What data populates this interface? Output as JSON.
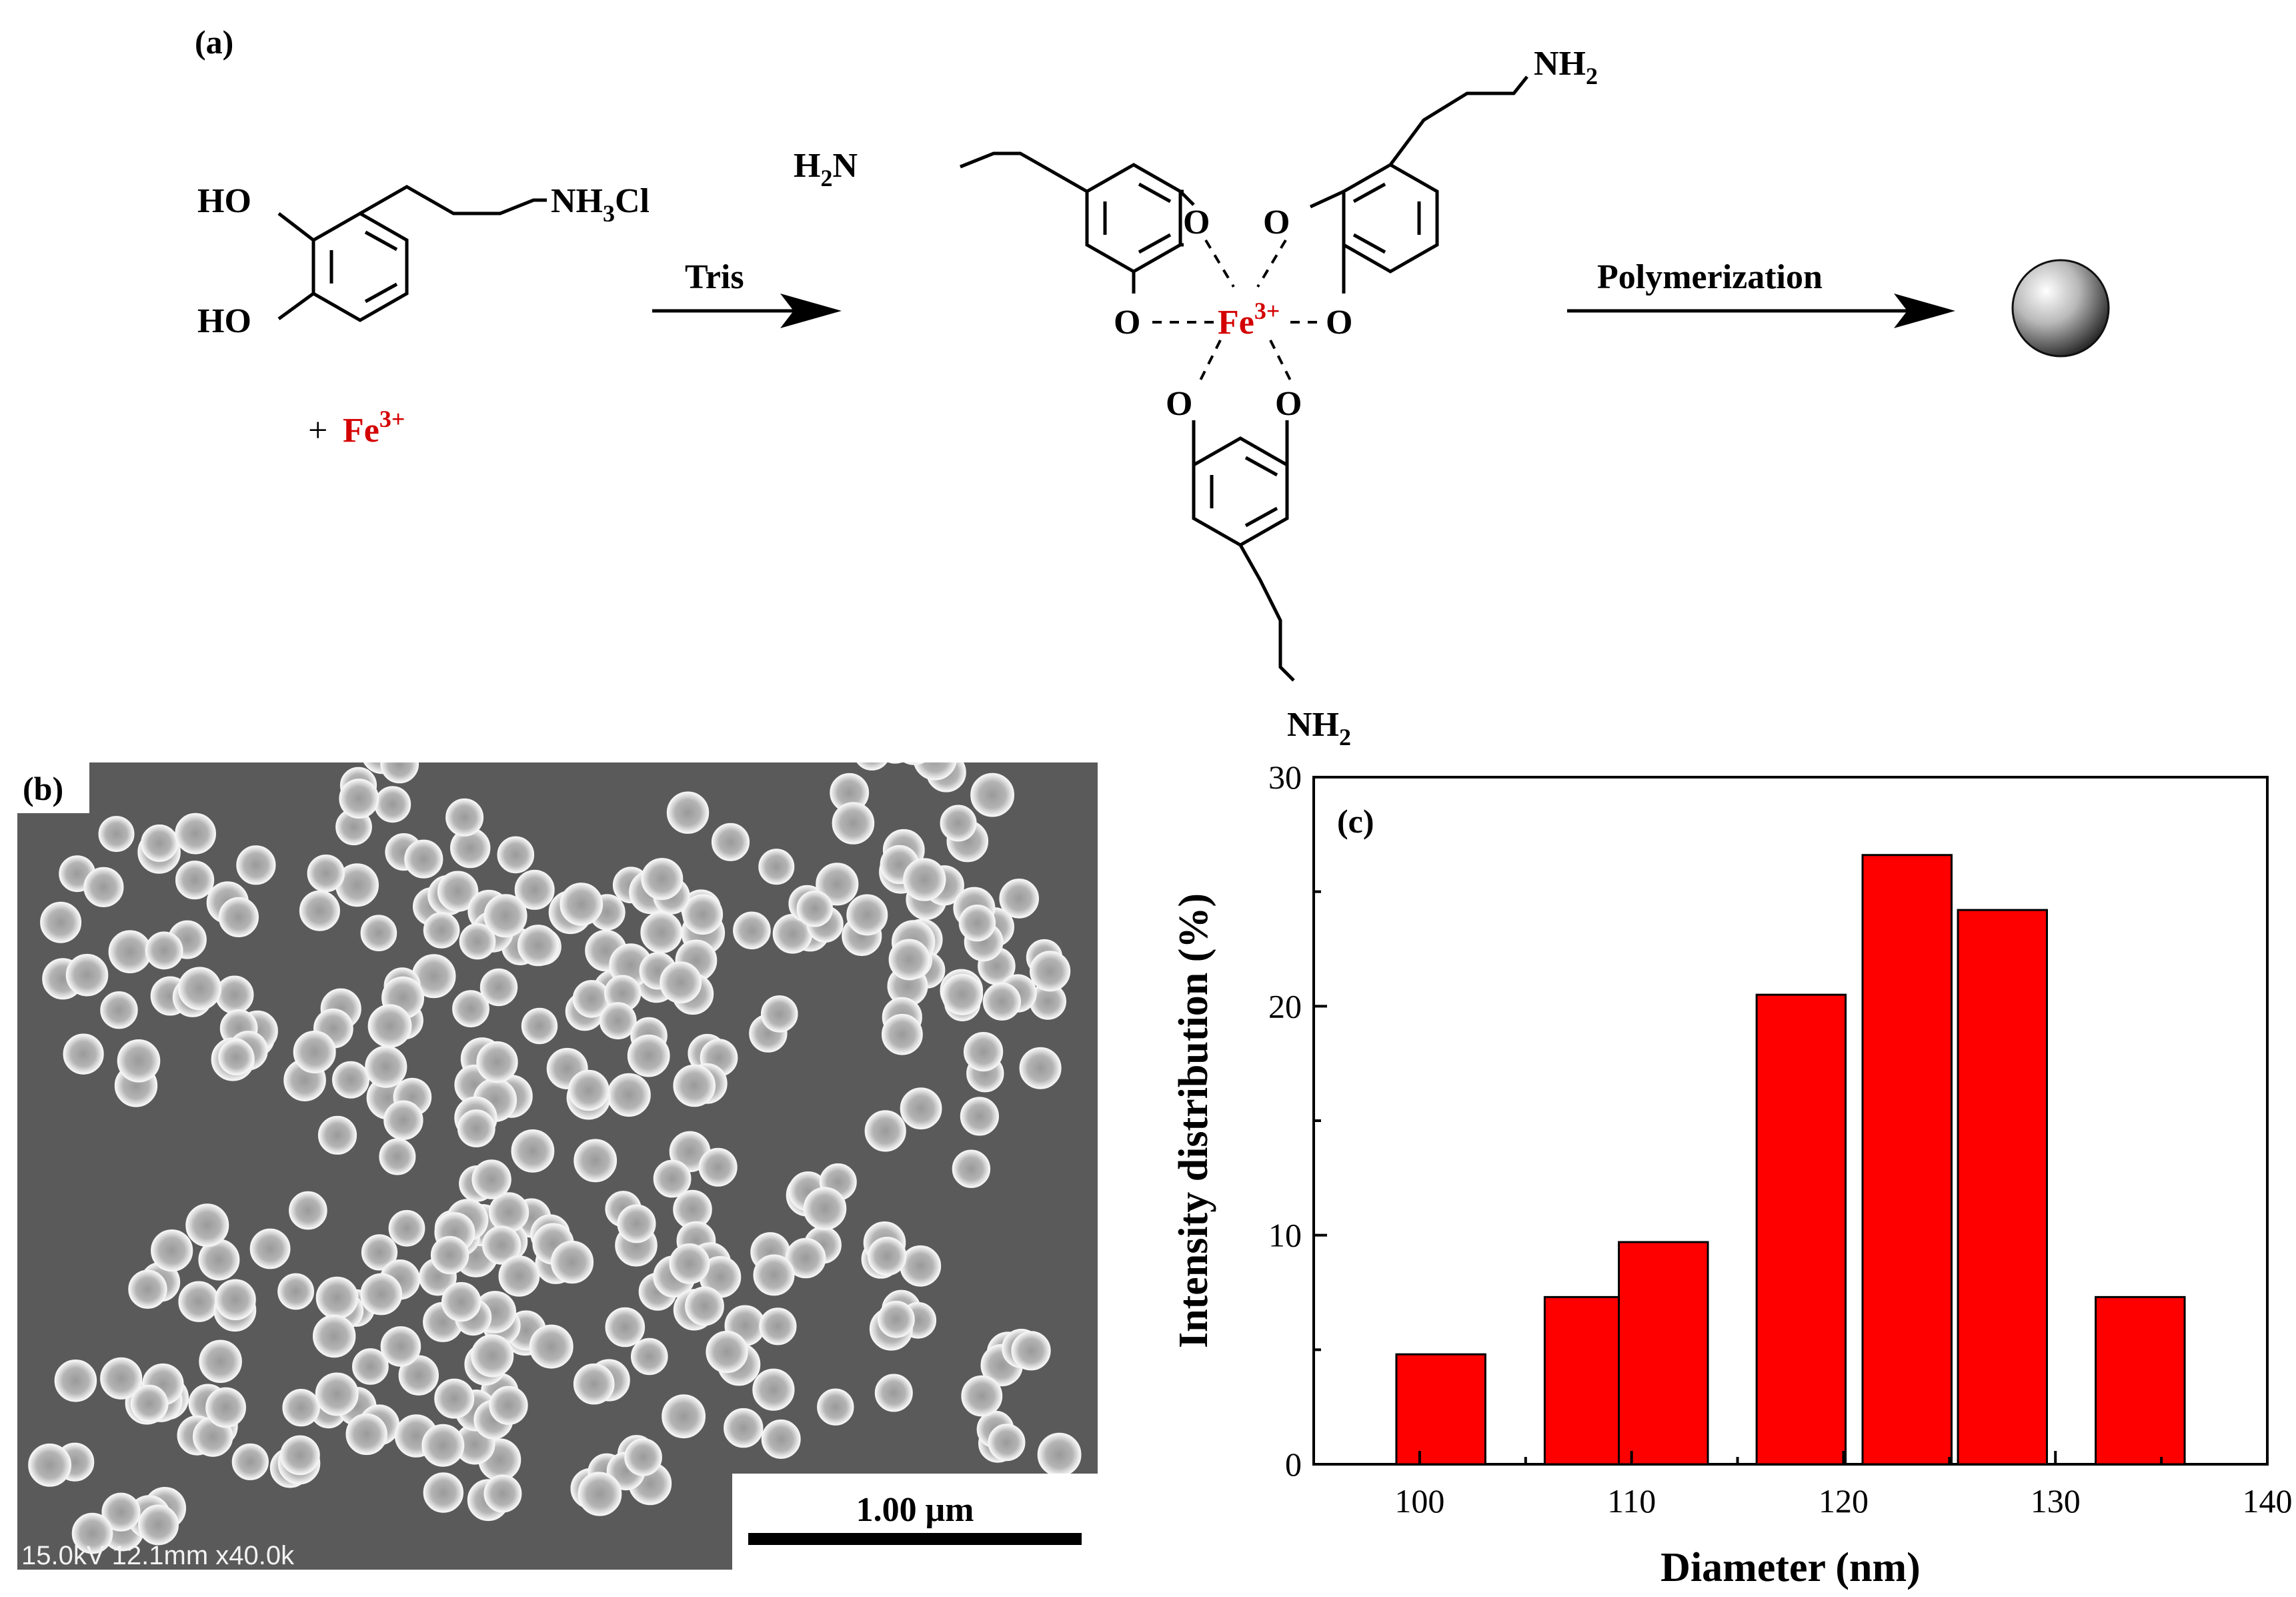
{
  "scheme": {
    "panel_label": "(a)",
    "reactant": {
      "ho_top": "HO",
      "ho_bottom": "HO",
      "amine_prefix": "NH",
      "amine_sub": "3",
      "amine_suffix": "Cl"
    },
    "plus_sign": "+",
    "iron_symbol": "Fe",
    "iron_charge": "3+",
    "arrow1_label": "Tris",
    "arrow2_label": "Polymerization",
    "complex": {
      "amine": "NH",
      "amine_sub": "2",
      "amine_left_h": "H",
      "amine_left_sub": "2",
      "amine_left_n": "N",
      "oxygen": "O"
    }
  },
  "sem": {
    "panel_label": "(b)",
    "scale_bar_label": "1.00 μm",
    "info_text": "15.0kV 12.1mm x40.0k"
  },
  "chart_data": {
    "type": "bar",
    "panel_label": "(c)",
    "x": [
      101,
      108,
      111.5,
      118,
      123,
      127.5,
      134
    ],
    "values": [
      4.8,
      7.3,
      9.7,
      20.5,
      26.6,
      24.2,
      7.3
    ],
    "xlabel": "Diameter (nm)",
    "ylabel": "Intensity distribution (%)",
    "xlim": [
      95,
      140
    ],
    "ylim": [
      0,
      30
    ],
    "xticks": [
      100,
      110,
      120,
      130,
      140
    ],
    "yticks": [
      0,
      10,
      20,
      30
    ],
    "bar_color": "#ff0000",
    "grid": false
  },
  "colors": {
    "accent": "#d40000",
    "bar": "#ff0000",
    "sem_bg": "#5a5a5a"
  }
}
